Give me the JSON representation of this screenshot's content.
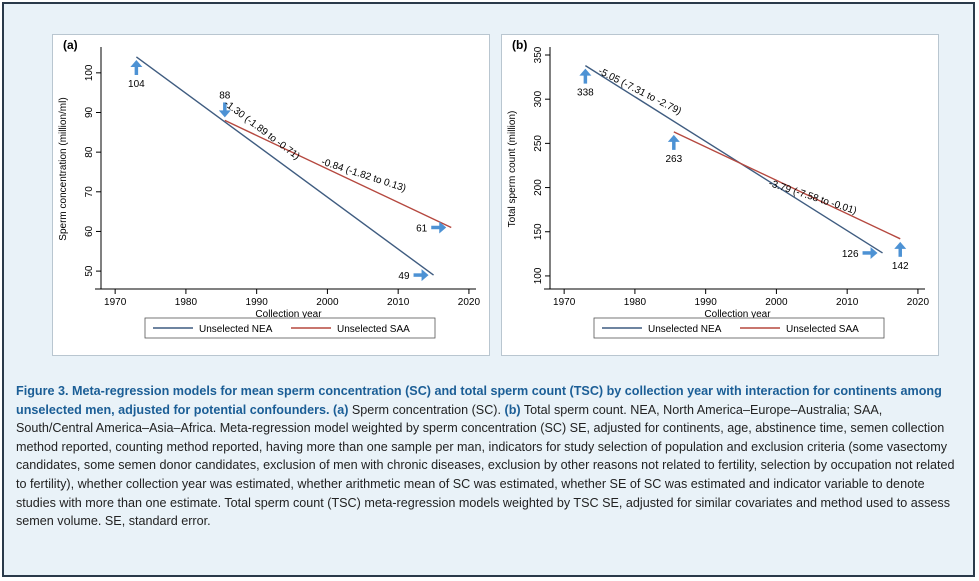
{
  "chart_data": [
    {
      "type": "line",
      "panel_label": "(a)",
      "xlabel": "Collection year",
      "ylabel": "Sperm concentration (million/ml)",
      "xlim": [
        1968,
        2021
      ],
      "ylim": [
        47,
        104.5
      ],
      "xticks": [
        1970,
        1980,
        1990,
        2000,
        2010,
        2020
      ],
      "yticks": [
        50,
        60,
        70,
        80,
        90,
        100
      ],
      "legend_position": "bottom",
      "series": [
        {
          "name": "Unselected NEA",
          "color": "#3f5c80",
          "x": [
            1973,
            2015
          ],
          "y": [
            104,
            49
          ]
        },
        {
          "name": "Unselected SAA",
          "color": "#b5483f",
          "x": [
            1985.5,
            2017.5
          ],
          "y": [
            88,
            61
          ]
        }
      ],
      "annotations": [
        {
          "text": "104",
          "x": 1973,
          "y": 104,
          "arrow": "up",
          "anchor": "below"
        },
        {
          "text": "88",
          "x": 1985.5,
          "y": 88,
          "arrow": "down",
          "anchor": "above"
        },
        {
          "text": "61",
          "x": 2017.5,
          "y": 61,
          "arrow": "right",
          "anchor": "left"
        },
        {
          "text": "49",
          "x": 2015,
          "y": 49,
          "arrow": "right",
          "anchor": "left"
        },
        {
          "text": "-1.30 (-1.89 to -0.71)",
          "x": 1990.5,
          "y": 85,
          "angle": 37
        },
        {
          "text": "-0.84 (-1.82 to 0.13)",
          "x": 2005,
          "y": 73.5,
          "angle": 18
        }
      ]
    },
    {
      "type": "line",
      "panel_label": "(b)",
      "xlabel": "Collection year",
      "ylabel": "Total sperm count (million)",
      "xlim": [
        1968,
        2021
      ],
      "ylim": [
        92,
        350
      ],
      "xticks": [
        1970,
        1980,
        1990,
        2000,
        2010,
        2020
      ],
      "yticks": [
        100,
        150,
        200,
        250,
        300,
        350
      ],
      "legend_position": "bottom",
      "series": [
        {
          "name": "Unselected NEA",
          "color": "#3f5c80",
          "x": [
            1973,
            2015
          ],
          "y": [
            338,
            126
          ]
        },
        {
          "name": "Unselected SAA",
          "color": "#b5483f",
          "x": [
            1985.5,
            2017.5
          ],
          "y": [
            263,
            142
          ]
        }
      ],
      "annotations": [
        {
          "text": "338",
          "x": 1973,
          "y": 338,
          "arrow": "up",
          "anchor": "below"
        },
        {
          "text": "263",
          "x": 1985.5,
          "y": 263,
          "arrow": "up",
          "anchor": "below"
        },
        {
          "text": "126",
          "x": 2015,
          "y": 126,
          "arrow": "right",
          "anchor": "left"
        },
        {
          "text": "142",
          "x": 2017.5,
          "y": 142,
          "arrow": "up",
          "anchor": "below"
        },
        {
          "text": "-5.05 (-7.31 to -2.79)",
          "x": 1980.5,
          "y": 306,
          "angle": 27
        },
        {
          "text": "-3.79 (-7.58 to -0.01)",
          "x": 2005,
          "y": 186,
          "angle": 18
        }
      ]
    }
  ],
  "caption": {
    "heading": "Figure 3. Meta-regression models for mean sperm concentration (SC) and total sperm count (TSC) by collection year with interaction for continents among unselected men, adjusted for potential confounders.",
    "label_a": "(a)",
    "text_a": " Sperm concentration (SC). ",
    "label_b": "(b)",
    "text_rest": " Total sperm count. NEA, North America–Europe–Australia; SAA, South/Central America–Asia–Africa. Meta-regression model weighted by sperm concentration (SC) SE, adjusted for continents, age, abstinence time, semen collection method reported, counting method reported, having more than one sample per man, indicators for study selection of population and exclusion criteria (some vasectomy candidates, some semen donor candidates, exclusion of men with chronic diseases, exclusion by other reasons not related to fertility, selection by occupation not related to fertility), whether collection year was estimated, whether arithmetic mean of SC was estimated, whether SE of SC was estimated and indicator variable to denote studies with more than one estimate. Total sperm count (TSC) meta-regression models weighted by TSC SE, adjusted for similar covariates and method used to assess semen volume. SE, standard error."
  }
}
